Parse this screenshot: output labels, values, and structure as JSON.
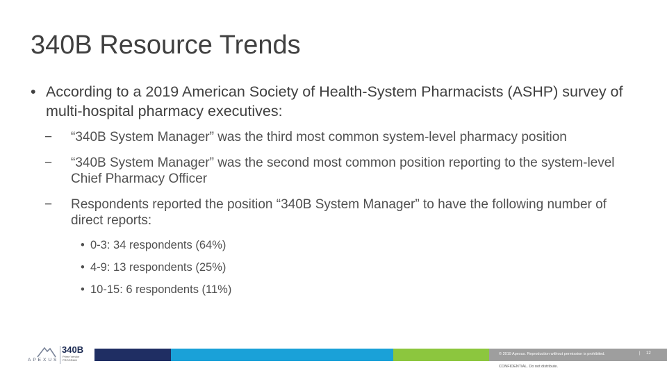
{
  "slide": {
    "title": "340B Resource Trends",
    "bullet": {
      "marker": "•",
      "text": "According to a 2019 American Society of Health-System Pharmacists (ASHP) survey of multi-hospital pharmacy executives:",
      "subpoints": [
        {
          "marker": "−",
          "text": "“340B System Manager” was the third most common system-level pharmacy position"
        },
        {
          "marker": "−",
          "text": "“340B System Manager” was the second most common position reporting to the system-level Chief Pharmacy Officer"
        },
        {
          "marker": "−",
          "text": "Respondents reported the position “340B System Manager” to have the following number of direct reports:"
        }
      ],
      "direct_reports": [
        {
          "marker": "•",
          "text": "0-3: 34 respondents (64%)"
        },
        {
          "marker": "•",
          "text": "4-9: 13 respondents (25%)"
        },
        {
          "marker": "•",
          "text": "10-15: 6 respondents (11%)"
        }
      ]
    }
  },
  "footer": {
    "logo": {
      "company": "APEXUS",
      "brand": "340B",
      "program": "Prime Vendor PROGRAM"
    },
    "copyright": "© 2019 Apexus. Reproduction without permission is prohibited.",
    "separator": "|",
    "page_number": "12",
    "confidential": "CONFIDENTIAL. Do not distribute.",
    "bar_colors": [
      "#1f2e63",
      "#1aa1d8",
      "#8cc63e",
      "#9e9e9e"
    ]
  }
}
